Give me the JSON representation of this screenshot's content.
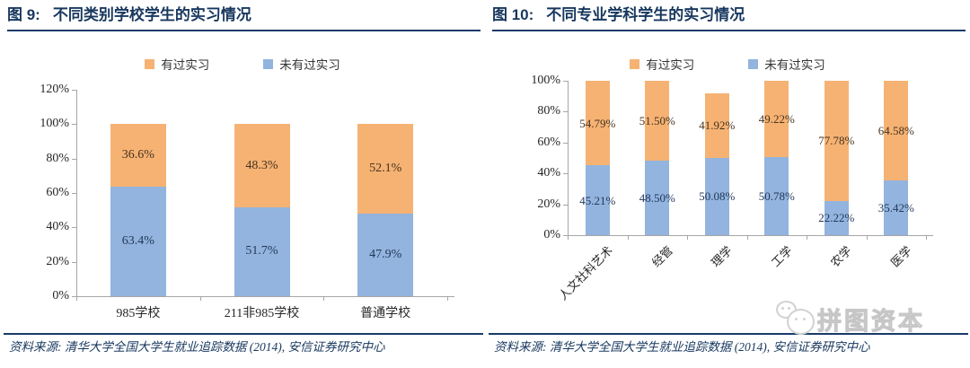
{
  "panels": [
    {
      "title_prefix": "图 9:",
      "title": "不同类别学校学生的实习情况",
      "legend": [
        {
          "label": "有过实习",
          "color": "#F6B273"
        },
        {
          "label": "未有过实习",
          "color": "#92B4DE"
        }
      ],
      "source": "资料来源: 清华大学全国大学生就业追踪数据 (2014), 安信证券研究中心"
    },
    {
      "title_prefix": "图 10:",
      "title": "不同专业学科学生的实习情况",
      "legend": [
        {
          "label": "有过实习",
          "color": "#F6B273"
        },
        {
          "label": "未有过实习",
          "color": "#92B4DE"
        }
      ],
      "source": "资料来源: 清华大学全国大学生就业追踪数据 (2014), 安信证券研究中心"
    }
  ],
  "watermark": {
    "text": "拼图资本"
  },
  "colors": {
    "accent_navy": "#17375E",
    "bar_orange": "#F6B273",
    "bar_blue": "#92B4DE",
    "axis_gray": "#A6A6A6"
  },
  "chart_data": [
    {
      "type": "bar",
      "stacked": true,
      "title": "图 9: 不同类别学校学生的实习情况",
      "categories": [
        "985学校",
        "211非985学校",
        "普通学校"
      ],
      "series": [
        {
          "name": "未有过实习",
          "color": "#92B4DE",
          "values": [
            63.4,
            51.7,
            47.9
          ],
          "labels": [
            "63.4%",
            "51.7%",
            "47.9%"
          ]
        },
        {
          "name": "有过实习",
          "color": "#F6B273",
          "values": [
            36.6,
            48.3,
            52.1
          ],
          "labels": [
            "36.6%",
            "48.3%",
            "52.1%"
          ]
        }
      ],
      "ylim": [
        0,
        120
      ],
      "yticks": [
        "0%",
        "20%",
        "40%",
        "60%",
        "80%",
        "100%",
        "120%"
      ],
      "grid": false,
      "legend_position": "top"
    },
    {
      "type": "bar",
      "stacked": true,
      "title": "图 10: 不同专业学科学生的实习情况",
      "categories": [
        "人文社科艺术",
        "经管",
        "理学",
        "工学",
        "农学",
        "医学"
      ],
      "series": [
        {
          "name": "未有过实习",
          "color": "#92B4DE",
          "values": [
            45.21,
            48.5,
            50.08,
            50.78,
            22.22,
            35.42
          ],
          "labels": [
            "45.21%",
            "48.50%",
            "50.08%",
            "50.78%",
            "22.22%",
            "35.42%"
          ]
        },
        {
          "name": "有过实习",
          "color": "#F6B273",
          "values": [
            54.79,
            51.5,
            41.92,
            49.22,
            77.78,
            64.58
          ],
          "labels": [
            "54.79%",
            "51.50%",
            "41.92%",
            "49.22%",
            "77.78%",
            "64.58%"
          ]
        }
      ],
      "ylim": [
        0,
        100
      ],
      "yticks": [
        "0%",
        "20%",
        "40%",
        "60%",
        "80%",
        "100%"
      ],
      "grid": false,
      "legend_position": "top"
    }
  ]
}
